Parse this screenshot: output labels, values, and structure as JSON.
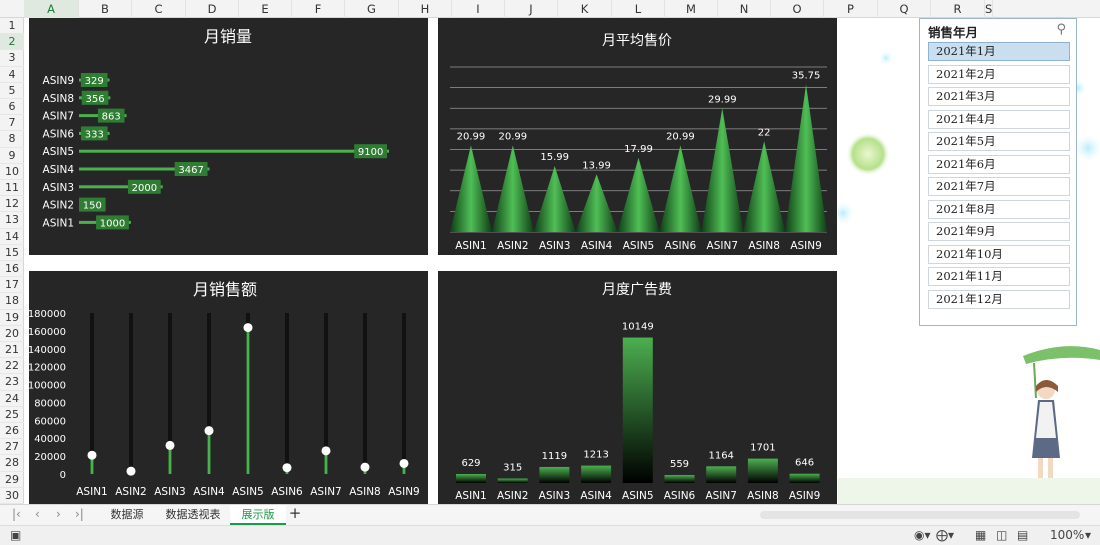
{
  "sheet": {
    "columns": [
      "A",
      "B",
      "C",
      "D",
      "E",
      "F",
      "G",
      "H",
      "I",
      "J",
      "K",
      "L",
      "M",
      "N",
      "O",
      "P",
      "Q",
      "R",
      "S"
    ],
    "selected_column": "A",
    "rows": [
      "1",
      "2",
      "3",
      "4",
      "5",
      "6",
      "7",
      "8",
      "9",
      "10",
      "11",
      "12",
      "13",
      "14",
      "15",
      "16",
      "17",
      "18",
      "19",
      "20",
      "21",
      "22",
      "23",
      "24",
      "25",
      "26",
      "27",
      "28",
      "29",
      "30"
    ],
    "selected_row": "2",
    "tabs": [
      "数据源",
      "数据透视表",
      "展示版"
    ],
    "active_tab": "展示版",
    "add_tab": "+",
    "zoom": "100%"
  },
  "slicer": {
    "title": "销售年月",
    "filter_icon": "clear-filter-icon",
    "items": [
      "2021年1月",
      "2021年2月",
      "2021年3月",
      "2021年4月",
      "2021年5月",
      "2021年6月",
      "2021年7月",
      "2021年8月",
      "2021年9月",
      "2021年10月",
      "2021年11月",
      "2021年12月"
    ],
    "selected": "2021年1月"
  },
  "colors": {
    "chart_bg": "#262626",
    "green": "#4caf50",
    "label_bg": "#2e7d32"
  },
  "chart_data": [
    {
      "id": "monthly-volume",
      "type": "bar",
      "title": "月销量",
      "orientation": "horizontal",
      "categories": [
        "ASIN9",
        "ASIN8",
        "ASIN7",
        "ASIN6",
        "ASIN5",
        "ASIN4",
        "ASIN3",
        "ASIN2",
        "ASIN1"
      ],
      "values": [
        329,
        356,
        863,
        333,
        9100,
        3467,
        2000,
        150,
        1000
      ]
    },
    {
      "id": "avg-price",
      "type": "bar",
      "title": "月平均售价",
      "categories": [
        "ASIN1",
        "ASIN2",
        "ASIN3",
        "ASIN4",
        "ASIN5",
        "ASIN6",
        "ASIN7",
        "ASIN8",
        "ASIN9"
      ],
      "values": [
        20.99,
        20.99,
        15.99,
        13.99,
        17.99,
        20.99,
        29.99,
        22,
        35.75
      ],
      "value_labels": [
        "20.99",
        "20.99",
        "15.99",
        "13.99",
        "17.99",
        "20.99",
        "29.99",
        "22",
        "35.75"
      ],
      "ylim": [
        0,
        40
      ],
      "grid": true
    },
    {
      "id": "monthly-revenue",
      "type": "lollipop",
      "title": "月销售额",
      "categories": [
        "ASIN1",
        "ASIN2",
        "ASIN3",
        "ASIN4",
        "ASIN5",
        "ASIN6",
        "ASIN7",
        "ASIN8",
        "ASIN9"
      ],
      "values": [
        20979,
        3145,
        31980,
        48483,
        163709,
        7030,
        25883,
        7650,
        11761
      ],
      "ylim": [
        0,
        180000
      ],
      "yticks": [
        "0",
        "20000",
        "40000",
        "60000",
        "80000",
        "100000",
        "120000",
        "140000",
        "160000",
        "180000"
      ]
    },
    {
      "id": "ad-spend",
      "type": "bar",
      "title": "月度广告费",
      "categories": [
        "ASIN1",
        "ASIN2",
        "ASIN3",
        "ASIN4",
        "ASIN5",
        "ASIN6",
        "ASIN7",
        "ASIN8",
        "ASIN9"
      ],
      "values": [
        629,
        315,
        1119,
        1213,
        10149,
        559,
        1164,
        1701,
        646
      ],
      "value_labels": [
        "629",
        "315",
        "1119",
        "1213",
        "10149",
        "559",
        "1164",
        "1701",
        "646"
      ],
      "ylim": [
        0,
        12000
      ]
    }
  ]
}
